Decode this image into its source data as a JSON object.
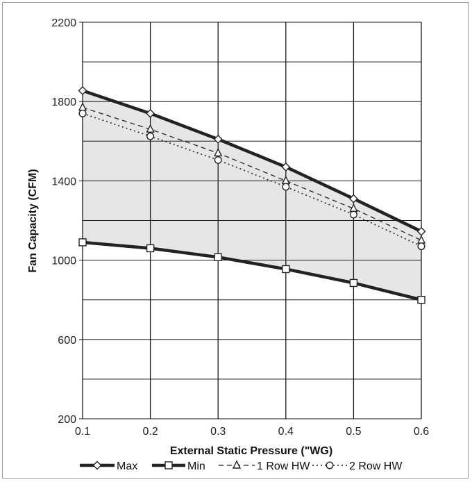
{
  "chart_data": {
    "type": "line",
    "xlabel": "External Static Pressure (\"WG)",
    "ylabel": "Fan Capacity (CFM)",
    "x": [
      0.1,
      0.2,
      0.3,
      0.4,
      0.5,
      0.6
    ],
    "x_tick_labels": [
      "0.1",
      "0.2",
      "0.3",
      "0.4",
      "0.5",
      "0.6"
    ],
    "xlim": [
      0.1,
      0.6
    ],
    "ylim": [
      200,
      2200
    ],
    "y_ticks": [
      200,
      600,
      1000,
      1400,
      1800,
      2200
    ],
    "y_tick_labels": [
      "200",
      "600",
      "1000",
      "1400",
      "1800",
      "2200"
    ],
    "grid": true,
    "shaded_region": "between Max and Min",
    "legend_position": "bottom",
    "series": [
      {
        "name": "Max",
        "values": [
          1855,
          1740,
          1610,
          1470,
          1310,
          1145
        ],
        "style": "solid-thick",
        "marker": "diamond",
        "color": "#222222"
      },
      {
        "name": "Min",
        "values": [
          1090,
          1060,
          1015,
          955,
          885,
          800
        ],
        "style": "solid-thick",
        "marker": "square",
        "color": "#222222"
      },
      {
        "name": "1 Row HW",
        "values": [
          1770,
          1660,
          1540,
          1400,
          1260,
          1100
        ],
        "style": "dashed",
        "marker": "triangle",
        "color": "#222222"
      },
      {
        "name": "2 Row HW",
        "values": [
          1740,
          1625,
          1505,
          1370,
          1230,
          1070
        ],
        "style": "dotted",
        "marker": "circle",
        "color": "#222222"
      }
    ]
  },
  "colors": {
    "shade": "#e6e6e8",
    "grid": "#1a1a1a",
    "frame": "#9a9a9a"
  }
}
